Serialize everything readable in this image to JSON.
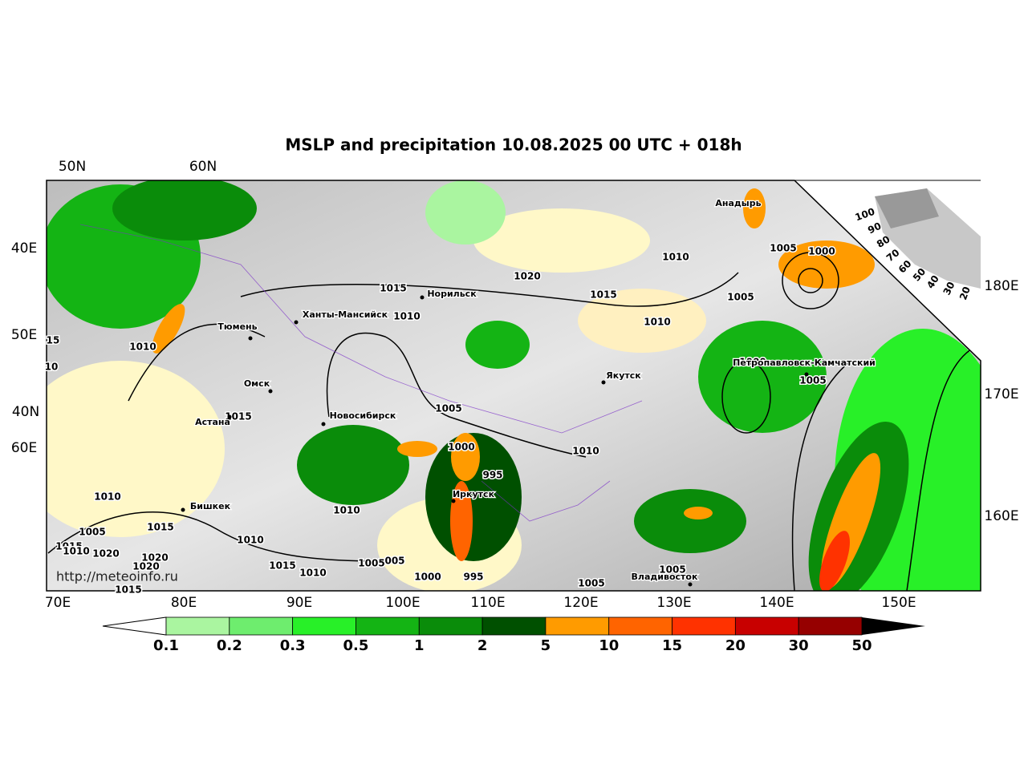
{
  "title": "MSLP and precipitation 10.08.2025 00 UTC + 018h",
  "url": "http://meteoinfo.ru",
  "graticule": {
    "top": [
      "50N",
      "60N"
    ],
    "left": [
      "40E",
      "50E",
      "40N",
      "60E"
    ],
    "right": [
      "180E",
      "170E",
      "160E"
    ],
    "bottom": [
      "70E",
      "80E",
      "90E",
      "100E",
      "110E",
      "120E",
      "130E",
      "140E",
      "150E"
    ]
  },
  "scale_labels": [
    "100",
    "90",
    "80",
    "70",
    "60",
    "50",
    "40",
    "30",
    "20"
  ],
  "cities": [
    "Анадырь",
    "Норильск",
    "Ханты-Мансийск",
    "Тюмень",
    "Омск",
    "Астана",
    "Новосибирск",
    "Якутск",
    "Петропавловск-Камчатский",
    "Иркутск",
    "Бишкек",
    "Владивосток"
  ],
  "isobar_labels": [
    "1015",
    "1010",
    "1020",
    "1015",
    "1010",
    "1010",
    "1005",
    "1000",
    "1005",
    "1000",
    "1005",
    "1010",
    "15",
    "10",
    "1015",
    "1005",
    "1000",
    "995",
    "1010",
    "1010",
    "1005",
    "1015",
    "1010",
    "1020",
    "1015",
    "1020",
    "1020",
    "1010",
    "1015",
    "1010",
    "1005",
    "005",
    "1000",
    "995",
    "1010",
    "1005",
    "1005",
    "1015"
  ],
  "colorbar": {
    "ticks": [
      "0.1",
      "0.2",
      "0.3",
      "0.5",
      "1",
      "2",
      "5",
      "10",
      "15",
      "20",
      "30",
      "50"
    ],
    "colors": [
      "#aaf5a0",
      "#6eed6e",
      "#28f028",
      "#14b414",
      "#0a8c0a",
      "#005000",
      "#ff9b00",
      "#ff6400",
      "#ff3200",
      "#c80000",
      "#960000"
    ]
  }
}
